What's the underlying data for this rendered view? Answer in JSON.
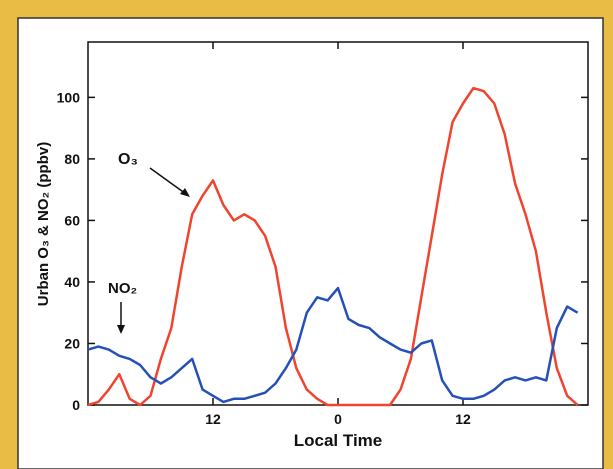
{
  "chart_data": {
    "type": "line",
    "x_label": "Local Time",
    "y_label": "Urban O₃ & NO₂ (ppbv)",
    "annotations": [
      "O₃",
      "NO₂"
    ],
    "x": [
      0,
      1,
      2,
      3,
      4,
      5,
      6,
      7,
      8,
      9,
      10,
      11,
      12,
      13,
      14,
      15,
      16,
      17,
      18,
      19,
      20,
      21,
      22,
      23,
      24,
      25,
      26,
      27,
      28,
      29,
      30,
      31,
      32,
      33,
      34,
      35,
      36,
      37,
      38,
      39,
      40,
      41,
      42,
      43,
      44,
      45,
      46,
      47
    ],
    "series": [
      {
        "name": "O₃",
        "color": "#f0442e",
        "values": [
          0,
          1,
          5,
          10,
          2,
          0,
          3,
          15,
          25,
          45,
          62,
          68,
          73,
          65,
          60,
          62,
          60,
          55,
          45,
          25,
          12,
          5,
          2,
          0,
          0,
          0,
          0,
          0,
          0,
          0,
          5,
          15,
          35,
          55,
          75,
          92,
          98,
          103,
          102,
          98,
          88,
          72,
          62,
          50,
          30,
          12,
          3,
          0
        ]
      },
      {
        "name": "NO₂",
        "color": "#2550b8",
        "values": [
          18,
          19,
          18,
          16,
          15,
          13,
          9,
          7,
          9,
          12,
          15,
          5,
          3,
          1,
          2,
          2,
          3,
          4,
          7,
          12,
          18,
          30,
          35,
          34,
          38,
          28,
          26,
          25,
          22,
          20,
          18,
          17,
          20,
          21,
          8,
          3,
          2,
          2,
          3,
          5,
          8,
          9,
          8,
          9,
          8,
          25,
          32,
          30
        ]
      }
    ],
    "xlim": [
      0,
      48
    ],
    "xticks": [
      {
        "value": 12,
        "label": "12"
      },
      {
        "value": 24,
        "label": "0"
      },
      {
        "value": 36,
        "label": "12"
      }
    ],
    "ylim": [
      0,
      118
    ],
    "yticks": [
      0,
      20,
      40,
      60,
      80,
      100
    ]
  }
}
